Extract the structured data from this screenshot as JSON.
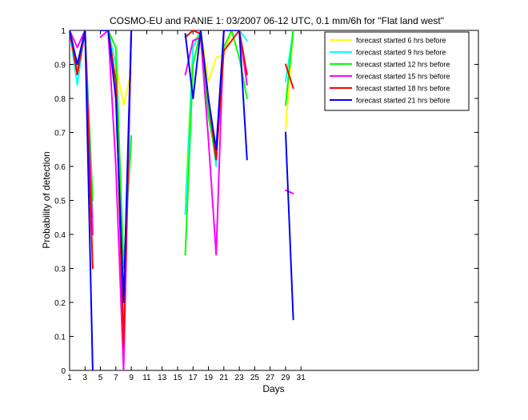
{
  "chart_data": {
    "type": "line",
    "title": "COSMO-EU and RANIE 1: 03/2007 06-12 UTC, 0.1 mm/6h for \"Flat land west\"",
    "xlabel": "Days",
    "ylabel": "Probability of detection",
    "xlim": [
      1,
      54
    ],
    "ylim": [
      0,
      1
    ],
    "xticks": [
      1,
      3,
      5,
      7,
      9,
      11,
      13,
      15,
      17,
      19,
      21,
      23,
      25,
      27,
      29,
      31
    ],
    "yticks": [
      0,
      0.1,
      0.2,
      0.3,
      0.4,
      0.5,
      0.6,
      0.7,
      0.8,
      0.9,
      1
    ],
    "ytick_labels": [
      "0",
      "0.1",
      "0.2",
      "0.3",
      "0.4",
      "0.5",
      "0.6",
      "0.7",
      "0.8",
      "0.9",
      "1"
    ],
    "grid": false,
    "legend_position": "top-right",
    "series": [
      {
        "name": "forecast started 6 hrs before",
        "color": "#ffff00",
        "values": [
          [
            [
              1,
              1
            ],
            [
              2,
              0.9
            ],
            [
              3,
              1
            ],
            [
              4,
              0.3
            ]
          ],
          [
            [
              5,
              1
            ],
            [
              6,
              1
            ],
            [
              7,
              0.9
            ],
            [
              8,
              0.78
            ],
            [
              9,
              0.88
            ]
          ],
          [
            [
              16,
              0.5
            ],
            [
              17,
              0.96
            ],
            [
              18,
              1
            ],
            [
              19,
              0.85
            ],
            [
              20,
              0.92
            ],
            [
              21,
              0.93
            ],
            [
              22,
              1
            ],
            [
              23,
              1
            ],
            [
              24,
              0.87
            ]
          ],
          [
            [
              29,
              0.71
            ],
            [
              30,
              1
            ]
          ]
        ]
      },
      {
        "name": "forecast started 9 hrs before",
        "color": "#00ffff",
        "values": [
          [
            [
              1,
              1
            ],
            [
              2,
              0.84
            ],
            [
              3,
              1
            ],
            [
              4,
              0.45
            ]
          ],
          [
            [
              5,
              1
            ],
            [
              6,
              1
            ],
            [
              7,
              0.9
            ],
            [
              8,
              0.3
            ],
            [
              9,
              0.68
            ]
          ],
          [
            [
              16,
              0.46
            ],
            [
              17,
              0.95
            ],
            [
              18,
              1
            ],
            [
              19,
              0.78
            ],
            [
              20,
              0.6
            ],
            [
              21,
              1
            ],
            [
              22,
              1
            ],
            [
              23,
              1
            ],
            [
              24,
              0.97
            ]
          ],
          [
            [
              29,
              0.85
            ],
            [
              30,
              1
            ]
          ]
        ]
      },
      {
        "name": "forecast started 12 hrs before",
        "color": "#00ff00",
        "values": [
          [
            [
              1,
              1
            ],
            [
              2,
              0.88
            ],
            [
              3,
              1
            ],
            [
              4,
              0.5
            ]
          ],
          [
            [
              5,
              1
            ],
            [
              6,
              1
            ],
            [
              7,
              0.95
            ],
            [
              8,
              0.3
            ],
            [
              9,
              0.69
            ]
          ],
          [
            [
              16,
              0.34
            ],
            [
              17,
              0.9
            ],
            [
              18,
              1
            ],
            [
              19,
              0.75
            ],
            [
              20,
              0.62
            ],
            [
              21,
              0.95
            ],
            [
              22,
              1
            ],
            [
              23,
              0.92
            ],
            [
              24,
              0.8
            ]
          ],
          [
            [
              29,
              0.78
            ],
            [
              30,
              1
            ]
          ]
        ]
      },
      {
        "name": "forecast started 15 hrs before",
        "color": "#ff00ff",
        "values": [
          [
            [
              1,
              1
            ],
            [
              2,
              0.95
            ],
            [
              3,
              1
            ],
            [
              4,
              0.4
            ]
          ],
          [
            [
              5,
              0.98
            ],
            [
              6,
              1
            ],
            [
              7,
              0.6
            ],
            [
              8,
              0
            ],
            [
              9,
              1
            ]
          ],
          [
            [
              16,
              0.87
            ],
            [
              17,
              0.97
            ],
            [
              18,
              0.98
            ],
            [
              19,
              0.68
            ],
            [
              20,
              0.34
            ],
            [
              21,
              1
            ],
            [
              22,
              1
            ],
            [
              23,
              1
            ],
            [
              24,
              0.84
            ]
          ],
          [
            [
              29,
              0.53
            ],
            [
              30,
              0.52
            ]
          ]
        ]
      },
      {
        "name": "forecast started 18 hrs before",
        "color": "#ff0000",
        "values": [
          [
            [
              1,
              1
            ],
            [
              2,
              0.87
            ],
            [
              3,
              1
            ],
            [
              4,
              0.3
            ]
          ],
          [
            [
              5,
              1
            ],
            [
              6,
              1
            ],
            [
              7,
              0.85
            ],
            [
              8,
              0.07
            ],
            [
              9,
              1
            ]
          ],
          [
            [
              16,
              0.98
            ],
            [
              17,
              1
            ],
            [
              18,
              0.99
            ],
            [
              19,
              0.8
            ],
            [
              20,
              0.62
            ],
            [
              21,
              0.94
            ],
            [
              22,
              0.97
            ],
            [
              23,
              1
            ],
            [
              24,
              0.87
            ]
          ],
          [
            [
              29,
              0.9
            ],
            [
              30,
              0.83
            ]
          ]
        ]
      },
      {
        "name": "forecast started 21 hrs before",
        "color": "#0000ff",
        "values": [
          [
            [
              1,
              1
            ],
            [
              2,
              0.9
            ],
            [
              3,
              1
            ],
            [
              4,
              0
            ]
          ],
          [
            [
              5,
              1
            ],
            [
              6,
              1
            ],
            [
              7,
              0.8
            ],
            [
              8,
              0.2
            ],
            [
              9,
              1
            ]
          ],
          [
            [
              16,
              0.99
            ],
            [
              17,
              0.8
            ],
            [
              18,
              1
            ],
            [
              19,
              0.8
            ],
            [
              20,
              0.65
            ],
            [
              21,
              1
            ],
            [
              22,
              1
            ],
            [
              23,
              1
            ],
            [
              24,
              0.62
            ]
          ],
          [
            [
              29,
              0.7
            ],
            [
              30,
              0.15
            ]
          ]
        ]
      }
    ]
  }
}
